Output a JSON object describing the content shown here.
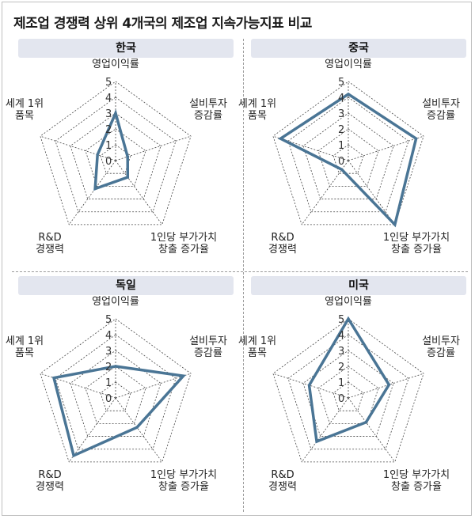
{
  "title": "제조업 경쟁력 상위 4개국의 제조업 지속가능지표 비교",
  "colors": {
    "series": "#4a7595",
    "grid": "#444444",
    "header_bg": "#e3e6ef"
  },
  "chart_data": [
    {
      "type": "radar",
      "title": "한국",
      "axes": [
        [
          "영업이익률"
        ],
        [
          "설비투자",
          "증감률"
        ],
        [
          "1인당 부가가치",
          "창출 증가율"
        ],
        [
          "R&D",
          "경쟁력"
        ],
        [
          "세계 1위",
          "품목"
        ]
      ],
      "ticks": [
        "0",
        "1",
        "2",
        "3",
        "4",
        "5"
      ],
      "rlim": [
        0,
        5
      ],
      "values": [
        3.0,
        0.8,
        1.3,
        2.2,
        1.2
      ]
    },
    {
      "type": "radar",
      "title": "중국",
      "axes": [
        [
          "영업이익률"
        ],
        [
          "설비투자",
          "증감률"
        ],
        [
          "1인당 부가가치",
          "창출 증가율"
        ],
        [
          "R&D",
          "경쟁력"
        ],
        [
          "세계 1위",
          "품목"
        ]
      ],
      "ticks": [
        "0",
        "1",
        "2",
        "3",
        "4",
        "5"
      ],
      "rlim": [
        0,
        5
      ],
      "values": [
        4.2,
        4.5,
        5.0,
        0.7,
        4.5
      ]
    },
    {
      "type": "radar",
      "title": "독일",
      "axes": [
        [
          "영업이익률"
        ],
        [
          "설비투자",
          "증감률"
        ],
        [
          "1인당 부가가치",
          "창출 증가율"
        ],
        [
          "R&D",
          "경쟁력"
        ],
        [
          "세계 1위",
          "품목"
        ]
      ],
      "ticks": [
        "0",
        "1",
        "2",
        "3",
        "4",
        "5"
      ],
      "rlim": [
        0,
        5
      ],
      "values": [
        2.0,
        4.5,
        2.3,
        4.5,
        4.1
      ]
    },
    {
      "type": "radar",
      "title": "미국",
      "axes": [
        [
          "영업이익률"
        ],
        [
          "설비투자",
          "증감률"
        ],
        [
          "1인당 부가가치",
          "창출 증가율"
        ],
        [
          "R&D",
          "경쟁력"
        ],
        [
          "세계 1위",
          "품목"
        ]
      ],
      "ticks": [
        "0",
        "1",
        "2",
        "3",
        "4",
        "5"
      ],
      "rlim": [
        0,
        5
      ],
      "values": [
        5.0,
        2.7,
        1.9,
        3.4,
        2.6
      ]
    }
  ]
}
